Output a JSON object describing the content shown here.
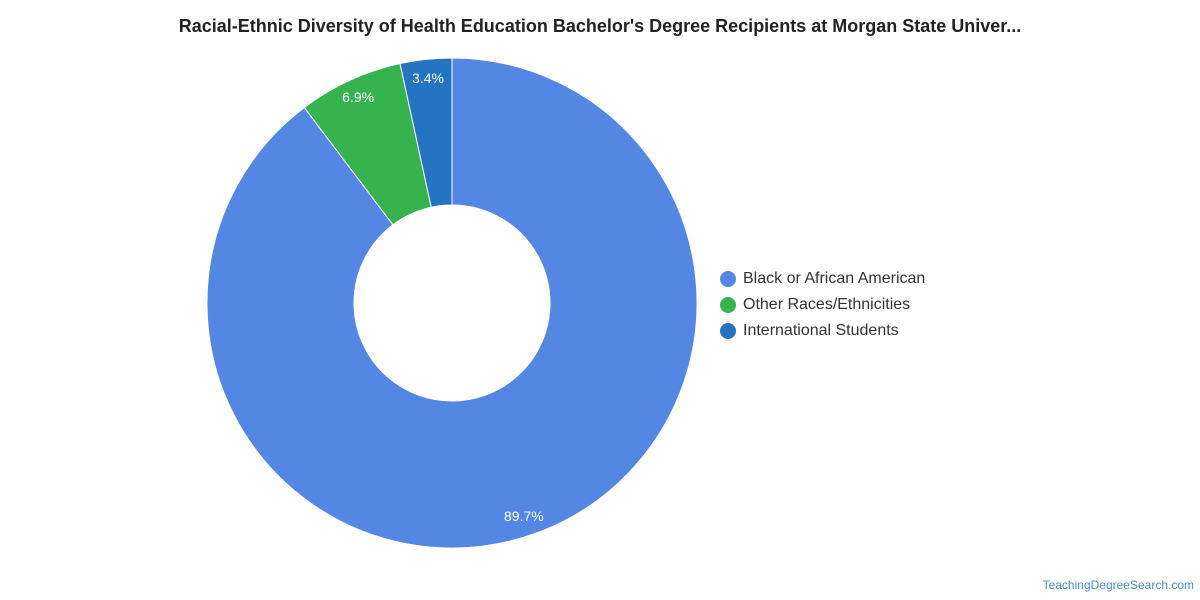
{
  "chart_data": {
    "type": "pie",
    "title": "Racial-Ethnic Diversity of Health Education Bachelor's Degree Recipients at Morgan State Univer...",
    "series": [
      {
        "name": "Black or African American",
        "value": 89.7,
        "label": "89.7%",
        "color": "#5486e3"
      },
      {
        "name": "Other Races/Ethnicities",
        "value": 6.9,
        "label": "6.9%",
        "color": "#36b34e"
      },
      {
        "name": "International Students",
        "value": 3.4,
        "label": "3.4%",
        "color": "#2474c2"
      }
    ],
    "legend_position": "right",
    "donut": true
  },
  "footer": {
    "source": "TeachingDegreeSearch.com"
  }
}
